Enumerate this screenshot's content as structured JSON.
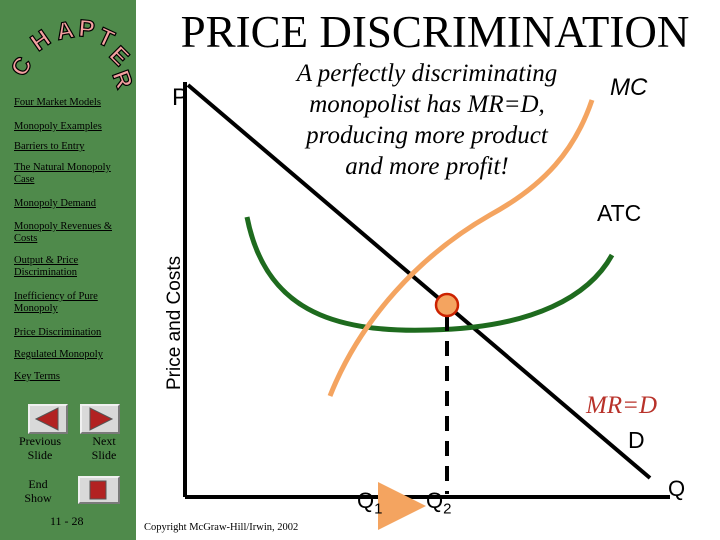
{
  "sidebar": {
    "chapter_letters": [
      "C",
      "H",
      "A",
      "P",
      "T",
      "E",
      "R"
    ],
    "nav_items": [
      "Four Market Models",
      "Monopoly Examples",
      "Barriers to Entry",
      "The Natural Monopoly Case",
      "Monopoly Demand",
      "Monopoly Revenues & Costs",
      "Output & Price Discrimination",
      "Inefficiency of Pure Monopoly",
      "Price Discrimination",
      "Regulated Monopoly",
      "Key Terms"
    ],
    "previous_label": [
      "Previous",
      "Slide"
    ],
    "next_label": [
      "Next",
      "Slide"
    ],
    "end_label": [
      "End",
      "Show"
    ],
    "page_number": "11 - 28"
  },
  "title": "PRICE DISCRIMINATION",
  "diagram": {
    "y_axis_label": "Price and Costs",
    "y_axis_symbol": "P",
    "x_axis_symbol": "Q",
    "caption_lines": [
      "A perfectly discriminating",
      "monopolist has MR=D,",
      "producing more product",
      "and more profit!"
    ],
    "mc_label": "MC",
    "atc_label": "ATC",
    "mrd_label": "MR=D",
    "d_label": "D",
    "q1_label": "Q",
    "q1_sub": "1",
    "q2_label": "Q",
    "q2_sub": "2",
    "colors": {
      "sidebar": "#4f8a4b",
      "mc_curve": "#f4a460",
      "atc_curve": "#1e6b1e",
      "mrd_text": "#b8322a",
      "arrow": "#f4a460"
    }
  },
  "copyright": "Copyright McGraw-Hill/Irwin, 2002"
}
